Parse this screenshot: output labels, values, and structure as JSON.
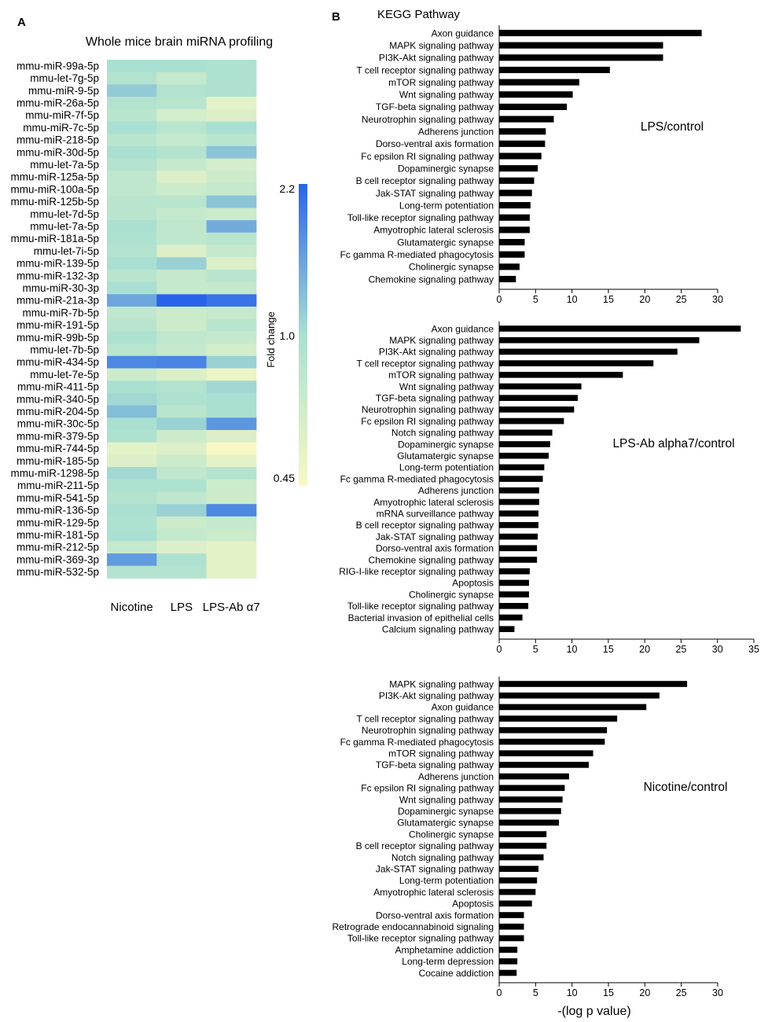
{
  "colors": {
    "low": "#f8f8c4",
    "mid": "#a9e0d1",
    "high": "#2864eb",
    "bar": "#000000"
  },
  "panel_a": {
    "letter": "A",
    "title": "Whole mice brain miRNA profiling",
    "colorbar": {
      "label": "Fold change",
      "ticks": [
        "2.2",
        "1.0",
        "0.45"
      ]
    }
  },
  "panel_b": {
    "letter": "B",
    "title": "KEGG Pathway",
    "xlabel": "-(log p value)"
  },
  "chart_data": [
    {
      "type": "heatmap",
      "title": "Whole mice brain miRNA profiling",
      "colorbar_label": "Fold change",
      "value_range": [
        0.45,
        2.2
      ],
      "columns": [
        "Nicotine",
        "LPS",
        "LPS-Ab α7"
      ],
      "rows": [
        "mmu-miR-99a-5p",
        "mmu-let-7g-5p",
        "mmu-miR-9-5p",
        "mmu-miR-26a-5p",
        "mmu-miR-7f-5p",
        "mmu-miR-7c-5p",
        "mmu-miR-218-5p",
        "mmu-miR-30d-5p",
        "mmu-let-7a-5p",
        "mmu-miR-125a-5p",
        "mmu-miR-100a-5p",
        "mmu-miR-125b-5p",
        "mmu-let-7d-5p",
        "mmu-let-7a-5p",
        "mmu-miR-181a-5p",
        "mmu-let-7i-5p",
        "mmu-miR-139-5p",
        "mmu-miR-132-3p",
        "mmu-miR-30-3p",
        "mmu-miR-21a-3p",
        "mmu-miR-7b-5p",
        "mmu-miR-191-5p",
        "mmu-miR-99b-5p",
        "mmu-let-7b-5p",
        "mmu-miR-434-5p",
        "mmu-let-7e-5p",
        "mmu-miR-411-5p",
        "mmu-miR-340-5p",
        "mmu-miR-204-5p",
        "mmu-miR-30c-5p",
        "mmu-miR-379-5p",
        "mmu-miR-744-5p",
        "mmu-miR-185-5p",
        "mmu-miR-1298-5p",
        "mmu-miR-211-5p",
        "mmu-miR-541-5p",
        "mmu-miR-136-5p",
        "mmu-miR-129-5p",
        "mmu-miR-181-5p",
        "mmu-miR-212-5p",
        "mmu-miR-369-3p",
        "mmu-miR-532-5p"
      ],
      "values": [
        [
          1.0,
          1.0,
          0.95
        ],
        [
          0.9,
          0.75,
          0.95
        ],
        [
          1.15,
          0.9,
          0.95
        ],
        [
          0.9,
          0.85,
          0.55
        ],
        [
          0.85,
          0.65,
          0.6
        ],
        [
          1.0,
          0.85,
          1.0
        ],
        [
          0.85,
          0.75,
          0.85
        ],
        [
          1.0,
          0.9,
          1.2
        ],
        [
          0.9,
          0.75,
          0.65
        ],
        [
          0.8,
          0.6,
          0.7
        ],
        [
          0.8,
          0.7,
          0.75
        ],
        [
          0.85,
          0.85,
          1.2
        ],
        [
          0.85,
          0.75,
          0.7
        ],
        [
          1.0,
          0.8,
          1.4
        ],
        [
          0.95,
          0.8,
          0.85
        ],
        [
          0.9,
          0.6,
          0.75
        ],
        [
          1.0,
          1.1,
          0.6
        ],
        [
          0.85,
          0.75,
          0.85
        ],
        [
          1.0,
          0.75,
          0.75
        ],
        [
          1.45,
          2.2,
          2.0
        ],
        [
          0.8,
          0.7,
          0.75
        ],
        [
          0.85,
          0.7,
          0.85
        ],
        [
          0.95,
          0.8,
          0.75
        ],
        [
          0.85,
          0.75,
          0.65
        ],
        [
          1.75,
          1.8,
          1.1
        ],
        [
          0.7,
          0.6,
          0.5
        ],
        [
          1.0,
          0.9,
          1.05
        ],
        [
          1.05,
          0.95,
          1.0
        ],
        [
          1.25,
          0.85,
          1.0
        ],
        [
          1.0,
          1.1,
          1.6
        ],
        [
          0.95,
          0.7,
          0.6
        ],
        [
          0.55,
          0.6,
          0.45
        ],
        [
          0.6,
          0.7,
          0.55
        ],
        [
          1.05,
          0.8,
          0.9
        ],
        [
          0.95,
          0.95,
          0.7
        ],
        [
          0.9,
          0.8,
          0.7
        ],
        [
          1.0,
          1.1,
          1.75
        ],
        [
          0.95,
          0.7,
          0.75
        ],
        [
          1.0,
          0.75,
          0.7
        ],
        [
          0.75,
          0.6,
          0.55
        ],
        [
          1.55,
          0.95,
          0.55
        ],
        [
          0.9,
          0.9,
          0.55
        ]
      ]
    },
    {
      "type": "bar",
      "orientation": "horizontal",
      "title": "LPS/control",
      "xlabel": "",
      "xlim": [
        0,
        30
      ],
      "xticks": [
        0,
        5,
        10,
        15,
        20,
        25,
        30
      ],
      "categories": [
        "Axon guidance",
        "MAPK signaling pathway",
        "PI3K-Akt signaling pathway",
        "T cell receptor signaling pathway",
        "mTOR signaling pathway",
        "Wnt signaling pathway",
        "TGF-beta signaling pathway",
        "Neurotrophin signaling pathway",
        "Adherens junction",
        "Dorso-ventral axis formation",
        "Fc epsilon RI signaling pathway",
        "Dopaminergic synapse",
        "B cell receptor signaling pathway",
        "Jak-STAT signaling pathway",
        "Long-term potentiation",
        "Toll-like receptor signaling pathway",
        "Amyotrophic lateral sclerosis",
        "Glutamatergic synapse",
        "Fc gamma R-mediated phagocytosis",
        "Cholinergic synapse",
        "Chemokine signaling pathway"
      ],
      "values": [
        27.8,
        22.5,
        22.5,
        15.2,
        11.0,
        10.1,
        9.3,
        7.5,
        6.4,
        6.3,
        5.8,
        5.3,
        4.8,
        4.5,
        4.3,
        4.2,
        4.2,
        3.5,
        3.5,
        2.8,
        2.3
      ]
    },
    {
      "type": "bar",
      "orientation": "horizontal",
      "title": "LPS-Ab alpha7/control",
      "xlabel": "",
      "xlim": [
        0,
        35
      ],
      "xticks": [
        0,
        5,
        10,
        15,
        20,
        25,
        30,
        35
      ],
      "categories": [
        "Axon guidance",
        "MAPK signaling pathway",
        "PI3K-Akt signaling pathway",
        "T cell receptor signaling pathway",
        "mTOR signaling pathway",
        "Wnt signaling pathway",
        "TGF-beta signaling pathway",
        "Neurotrophin signaling pathway",
        "Fc epsilon RI signaling pathway",
        "Notch signaling pathway",
        "Dopaminergic synapse",
        "Glutamatergic synapse",
        "Long-term potentiation",
        "Fc gamma R-mediated phagocytosis",
        "Adherens junction",
        "Amyotrophic lateral sclerosis",
        "mRNA surveillance pathway",
        "B cell receptor signaling pathway",
        "Jak-STAT signaling pathway",
        "Dorso-ventral axis formation",
        "Chemokine signaling pathway",
        "RIG-I-like receptor signaling pathway",
        "Apoptosis",
        "Cholinergic synapse",
        "Toll-like receptor signaling pathway",
        "Bacterial invasion of epithelial cells",
        "Calcium signaling pathway"
      ],
      "values": [
        33.2,
        27.5,
        24.5,
        21.2,
        17.0,
        11.3,
        10.8,
        10.3,
        8.9,
        7.3,
        7.0,
        6.8,
        6.2,
        6.0,
        5.5,
        5.5,
        5.4,
        5.4,
        5.3,
        5.2,
        5.2,
        4.2,
        4.1,
        4.1,
        4.0,
        3.2,
        2.1
      ]
    },
    {
      "type": "bar",
      "orientation": "horizontal",
      "title": "Nicotine/control",
      "xlabel": "-(log p value)",
      "xlim": [
        0,
        30
      ],
      "xticks": [
        0,
        5,
        10,
        15,
        20,
        25,
        30
      ],
      "categories": [
        "MAPK signaling pathway",
        "PI3K-Akt signaling pathway",
        "Axon guidance",
        "T cell receptor signaling pathway",
        "Neurotrophin signaling pathway",
        "Fc gamma R-mediated phagocytosis",
        "mTOR signaling pathway",
        "TGF-beta signaling pathway",
        "Adherens junction",
        "Fc epsilon RI signaling pathway",
        "Wnt signaling pathway",
        "Dopaminergic synapse",
        "Glutamatergic synapse",
        "Cholinergic synapse",
        "B cell receptor signaling pathway",
        "Notch signaling pathway",
        "Jak-STAT signaling pathway",
        "Long-term potentiation",
        "Amyotrophic lateral sclerosis",
        "Apoptosis",
        "Dorso-ventral axis formation",
        "Retrograde endocannabinoid signaling",
        "Toll-like receptor signaling pathway",
        "Amphetamine addiction",
        "Long-term depression",
        "Cocaine addiction"
      ],
      "values": [
        25.8,
        22.0,
        20.2,
        16.2,
        14.8,
        14.5,
        12.9,
        12.3,
        9.6,
        9.0,
        8.7,
        8.5,
        8.2,
        6.5,
        6.5,
        6.1,
        5.4,
        5.2,
        5.0,
        4.5,
        3.4,
        3.4,
        3.4,
        2.5,
        2.5,
        2.4
      ]
    }
  ]
}
